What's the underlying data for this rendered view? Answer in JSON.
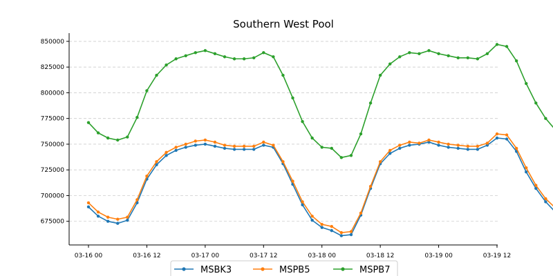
{
  "chart_data": {
    "type": "line",
    "title": "Southern West Pool",
    "xlabel": "",
    "ylabel": "",
    "x_start": "03-16 00",
    "x_step_hours": 2,
    "xlim": [
      "03-16 00",
      "03-19 12"
    ],
    "ylim": [
      652000,
      858000
    ],
    "x_ticks": [
      "03-16 00",
      "03-16 12",
      "03-17 00",
      "03-17 12",
      "03-18 00",
      "03-18 12",
      "03-19 00",
      "03-19 12"
    ],
    "y_ticks": [
      675000,
      700000,
      725000,
      750000,
      775000,
      800000,
      825000,
      850000
    ],
    "y_tick_labels": [
      "675000",
      "700000",
      "725000",
      "750000",
      "775000",
      "800000",
      "825000",
      "850000"
    ],
    "grid": "y-dashed",
    "legend": "bottom-center",
    "series": [
      {
        "name": "MSBK3",
        "color": "#1f77b4",
        "values": [
          689000,
          680000,
          675000,
          673000,
          676000,
          693000,
          716000,
          730000,
          739000,
          744000,
          747000,
          749000,
          750000,
          748000,
          746000,
          745000,
          745000,
          745000,
          749000,
          747000,
          731000,
          711000,
          691000,
          676000,
          669000,
          666000,
          661000,
          662000,
          681000,
          707000,
          731000,
          741000,
          746000,
          749000,
          750000,
          752000,
          749000,
          747000,
          746000,
          745000,
          745000,
          749000,
          756000,
          755000,
          743000,
          723000,
          707000,
          694000,
          684000,
          679000,
          675000,
          677000,
          693000,
          718000,
          736000,
          746000,
          752000,
          756000,
          758000,
          758000,
          755000,
          751000,
          749000,
          748000,
          748000,
          751000,
          756000,
          752000,
          735000,
          717000,
          701000,
          686000,
          678000,
          673000,
          670000,
          672000,
          690000,
          716000,
          737000,
          747000
        ]
      },
      {
        "name": "MSPB5",
        "color": "#ff7f0e",
        "values": [
          693000,
          684000,
          679000,
          677000,
          679000,
          696000,
          719000,
          733000,
          742000,
          747000,
          750000,
          753000,
          754000,
          752000,
          749000,
          748000,
          748000,
          748000,
          752000,
          749000,
          733000,
          714000,
          694000,
          680000,
          672000,
          670000,
          664000,
          665000,
          683000,
          709000,
          733000,
          744000,
          749000,
          752000,
          751000,
          754000,
          752000,
          750000,
          749000,
          748000,
          748000,
          751000,
          760000,
          759000,
          746000,
          727000,
          710000,
          697000,
          688000,
          682000,
          678000,
          680000,
          697000,
          720000,
          739000,
          749000,
          755000,
          759000,
          761000,
          760000,
          757000,
          754000,
          751000,
          751000,
          751000,
          754000,
          760000,
          755000,
          739000,
          721000,
          704000,
          689000,
          681000,
          676000,
          674000,
          675000,
          693000,
          719000,
          740000,
          750000
        ]
      },
      {
        "name": "MSPB7",
        "color": "#2ca02c",
        "values": [
          771000,
          761000,
          756000,
          754000,
          757000,
          776000,
          802000,
          817000,
          827000,
          833000,
          836000,
          839000,
          841000,
          838000,
          835000,
          833000,
          833000,
          834000,
          839000,
          835000,
          817000,
          795000,
          772000,
          756000,
          747000,
          746000,
          737000,
          739000,
          760000,
          790000,
          817000,
          828000,
          835000,
          839000,
          838000,
          841000,
          838000,
          836000,
          834000,
          834000,
          833000,
          838000,
          847000,
          845000,
          831000,
          809000,
          790000,
          775000,
          764000,
          758000,
          754000,
          756000,
          776000,
          804000,
          824000,
          834000,
          842000,
          846000,
          848000,
          847000,
          843000,
          839000,
          836000,
          835000,
          835000,
          840000,
          846000,
          839000,
          822000,
          802000,
          783000,
          766000,
          757000,
          751000,
          748000,
          751000,
          771000,
          801000,
          823000,
          835000
        ]
      }
    ]
  }
}
